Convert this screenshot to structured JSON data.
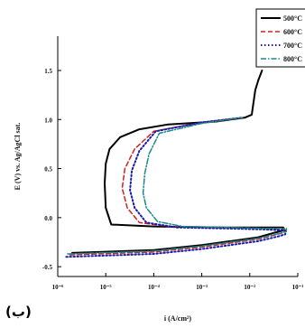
{
  "panel_label": "(ب)",
  "chart_data": {
    "type": "line",
    "title": "",
    "xlabel": "i (A/cm²)",
    "ylabel": "E (V) vs. Ag/AgCl sat.",
    "x_scale": "log",
    "xlim": [
      1e-06,
      0.1
    ],
    "ylim": [
      -0.6,
      1.85
    ],
    "grid": false,
    "legend_position": "top-right",
    "x_ticks": [
      {
        "value": 1e-06,
        "label": "10⁻⁶"
      },
      {
        "value": 1e-05,
        "label": "10⁻⁵"
      },
      {
        "value": 0.0001,
        "label": "10⁻⁴"
      },
      {
        "value": 0.001,
        "label": "10⁻³"
      },
      {
        "value": 0.01,
        "label": "10⁻²"
      },
      {
        "value": 0.1,
        "label": "10⁻¹"
      }
    ],
    "y_ticks": [
      {
        "value": -0.5,
        "label": "-0.5"
      },
      {
        "value": 0.0,
        "label": "0.0"
      },
      {
        "value": 0.5,
        "label": "0.5"
      },
      {
        "value": 1.0,
        "label": "1.0"
      },
      {
        "value": 1.5,
        "label": "1.5"
      }
    ],
    "series": [
      {
        "name": "500°C",
        "color": "#000000",
        "dash": "",
        "width": 2,
        "x": [
          2e-06,
          0.0001,
          0.001,
          0.015,
          0.035,
          0.05,
          0.05,
          0.02,
          0.003,
          0.0001,
          1.3e-05,
          1e-05,
          9.5e-06,
          1e-05,
          1.2e-05,
          2e-05,
          5e-05,
          0.0002,
          0.002,
          0.008,
          0.011,
          0.013,
          0.015,
          0.018
        ],
        "y": [
          -0.36,
          -0.33,
          -0.28,
          -0.2,
          -0.15,
          -0.13,
          -0.1,
          -0.1,
          -0.1,
          -0.09,
          -0.07,
          0.1,
          0.35,
          0.55,
          0.7,
          0.82,
          0.9,
          0.95,
          0.98,
          1.02,
          1.05,
          1.3,
          1.4,
          1.5
        ]
      },
      {
        "name": "600°C",
        "color": "#d42020",
        "dash": "5,3",
        "width": 1.5,
        "x": [
          1.8e-06,
          0.0001,
          0.001,
          0.015,
          0.038,
          0.052,
          0.052,
          0.02,
          0.003,
          0.0002,
          5e-05,
          2.8e-05,
          2.2e-05,
          2.5e-05,
          4e-05,
          0.0001,
          0.001,
          0.007
        ],
        "y": [
          -0.38,
          -0.35,
          -0.3,
          -0.22,
          -0.17,
          -0.15,
          -0.12,
          -0.11,
          -0.1,
          -0.09,
          -0.05,
          0.1,
          0.3,
          0.5,
          0.7,
          0.88,
          0.97,
          1.02
        ]
      },
      {
        "name": "700°C",
        "color": "#1a1ab0",
        "dash": "1.5,2.5",
        "width": 2,
        "x": [
          1.5e-06,
          0.0001,
          0.001,
          0.015,
          0.04,
          0.055,
          0.055,
          0.02,
          0.003,
          0.0003,
          7e-05,
          4e-05,
          3.2e-05,
          3.5e-05,
          5e-05,
          0.00011,
          0.001,
          0.007
        ],
        "y": [
          -0.4,
          -0.37,
          -0.32,
          -0.24,
          -0.19,
          -0.17,
          -0.13,
          -0.12,
          -0.11,
          -0.1,
          -0.05,
          0.1,
          0.28,
          0.48,
          0.68,
          0.88,
          0.97,
          1.02
        ]
      },
      {
        "name": "800°C",
        "color": "#1a8a8a",
        "dash": "6,2,1.5,2",
        "width": 1.5,
        "x": [
          1.6e-06,
          0.0001,
          0.001,
          0.015,
          0.042,
          0.058,
          0.058,
          0.02,
          0.003,
          0.0004,
          0.00012,
          7e-05,
          6e-05,
          6.5e-05,
          8e-05,
          0.00013,
          0.001,
          0.007
        ],
        "y": [
          -0.37,
          -0.34,
          -0.29,
          -0.21,
          -0.16,
          -0.14,
          -0.11,
          -0.11,
          -0.1,
          -0.09,
          -0.04,
          0.1,
          0.25,
          0.45,
          0.65,
          0.86,
          0.96,
          1.02
        ]
      }
    ]
  }
}
